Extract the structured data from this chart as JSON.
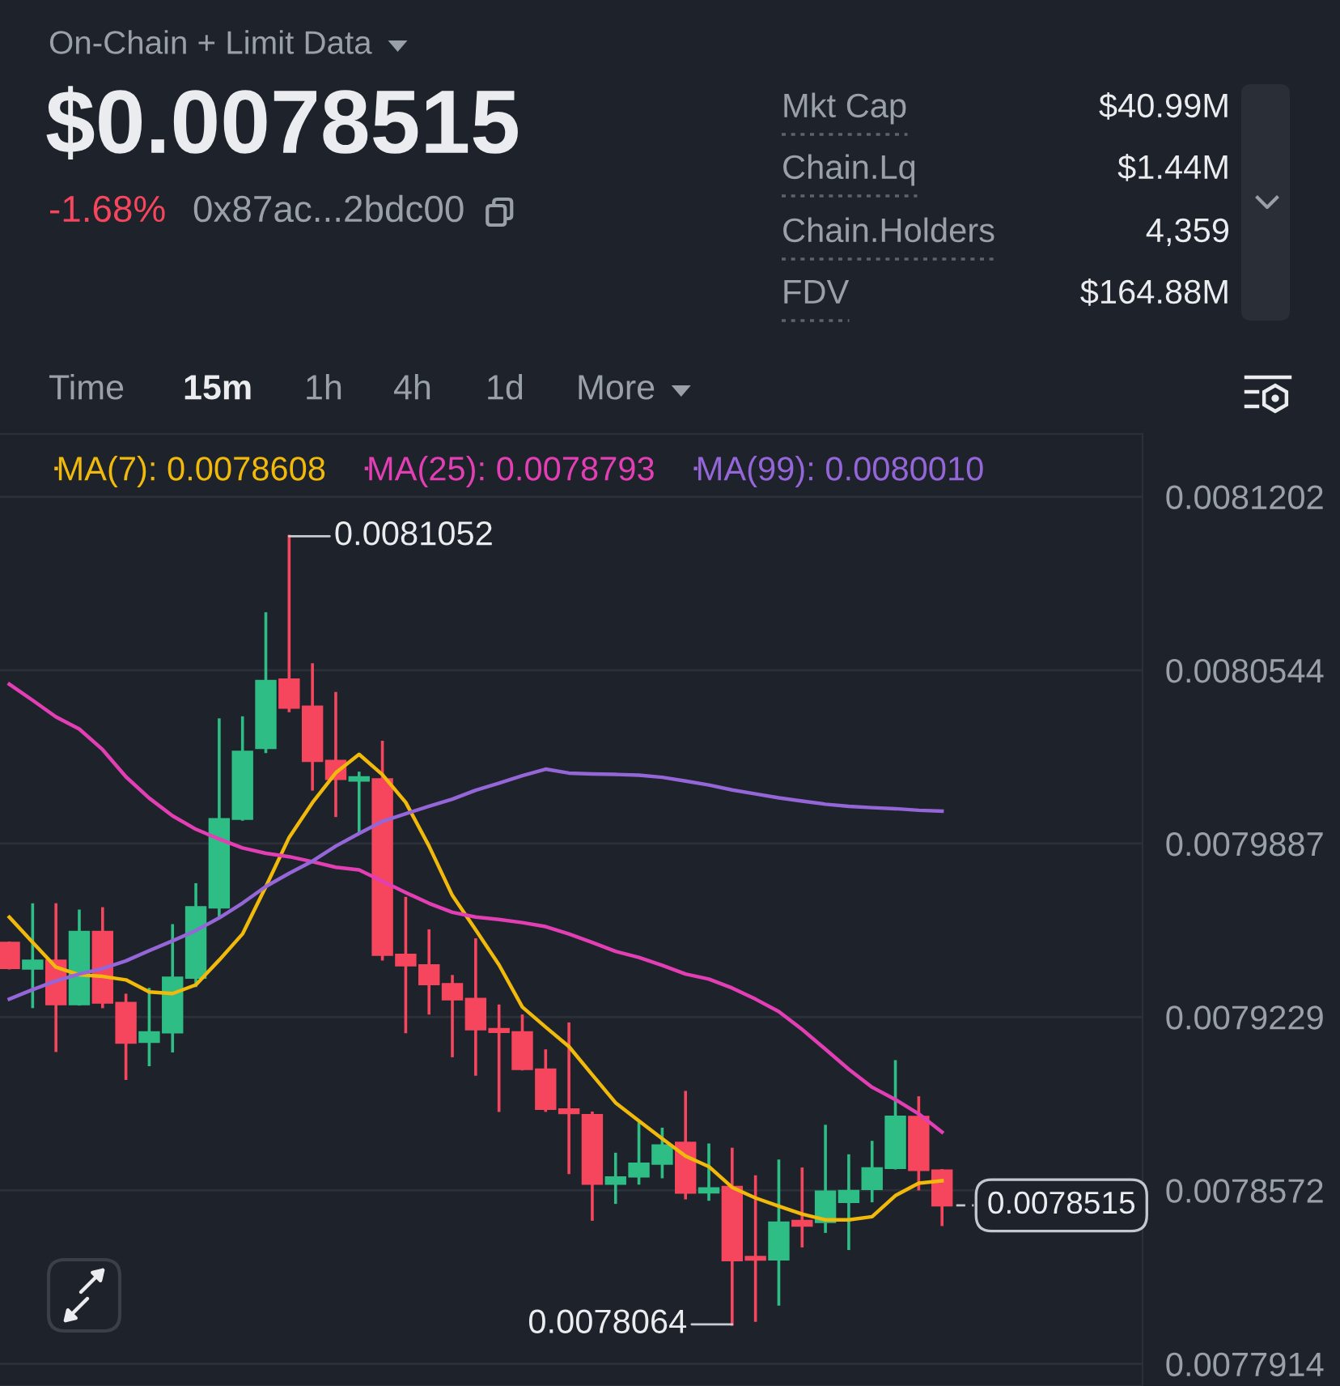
{
  "chart_data": {
    "type": "candlestick",
    "title": "On-Chain + Limit Data",
    "subtitle": "$0.0078515",
    "categories": [
      null,
      null,
      null,
      null,
      null,
      null,
      null,
      null,
      null,
      null,
      null,
      null,
      null,
      null,
      null,
      null,
      null,
      null,
      null,
      null,
      null,
      null,
      null,
      null,
      null,
      null,
      null,
      null,
      null,
      null,
      null,
      null,
      null,
      null,
      null,
      null,
      null,
      null,
      null,
      null,
      null
    ],
    "ohlc": [
      [
        0.007951,
        0.007951,
        0.0079415,
        0.0079415
      ],
      [
        0.0079413,
        0.0079655,
        0.0079268,
        0.0079443
      ],
      [
        0.0079443,
        0.0079655,
        0.0079102,
        0.0079278
      ],
      [
        0.0079278,
        0.0079631,
        0.0079278,
        0.0079552
      ],
      [
        0.0079552,
        0.007964,
        0.0079268,
        0.0079284
      ],
      [
        0.0079282,
        0.0079312,
        0.0078996,
        0.0079132
      ],
      [
        0.0079135,
        0.0079334,
        0.0079048,
        0.0079171
      ],
      [
        0.0079171,
        0.0079576,
        0.00791,
        0.0079378
      ],
      [
        0.0079378,
        0.0079731,
        0.0079348,
        0.0079645
      ],
      [
        0.0079645,
        0.0080356,
        0.0079616,
        0.0079979
      ],
      [
        0.0079981,
        0.0080364,
        0.0079979,
        0.0080235
      ],
      [
        0.0080249,
        0.0080758,
        0.0080235,
        0.0080503
      ],
      [
        0.0080509,
        0.0081052,
        0.008039,
        0.0080402
      ],
      [
        0.0080406,
        0.0080565,
        0.0080093,
        0.00802
      ],
      [
        0.00802,
        0.0080456,
        0.0079993,
        0.0080132
      ],
      [
        0.0080126,
        0.0080154,
        0.0079928,
        0.0080138
      ],
      [
        0.008013,
        0.0080271,
        0.0079449,
        0.0079465
      ],
      [
        0.0079465,
        0.0079679,
        0.0079173,
        0.0079425
      ],
      [
        0.0079425,
        0.0079556,
        0.0079244,
        0.0079354
      ],
      [
        0.0079354,
        0.0079383,
        0.0079082,
        0.0079296
      ],
      [
        0.0079298,
        0.0079522,
        0.0079012,
        0.0079183
      ],
      [
        0.0079183,
        0.0079271,
        0.0078875,
        0.0079173
      ],
      [
        0.0079171,
        0.0079233,
        0.0079032,
        0.0079032
      ],
      [
        0.007903,
        0.0079101,
        0.0078875,
        0.0078881
      ],
      [
        0.0078879,
        0.0079203,
        0.0078639,
        0.0078865
      ],
      [
        0.0078857,
        0.0078865,
        0.0078462,
        0.0078597
      ],
      [
        0.0078597,
        0.0078709,
        0.0078526,
        0.0078621
      ],
      [
        0.0078625,
        0.0078824,
        0.0078599,
        0.0078673
      ],
      [
        0.0078673,
        0.0078804,
        0.0078623,
        0.0078742
      ],
      [
        0.0078752,
        0.0078943,
        0.0078543,
        0.0078563
      ],
      [
        0.0078564,
        0.0078744,
        0.0078538,
        0.0078579
      ],
      [
        0.0078585,
        0.0078728,
        0.0078064,
        0.0078307
      ],
      [
        0.0078319,
        0.0078623,
        0.0078079,
        0.0078309
      ],
      [
        0.007831,
        0.0078683,
        0.007814,
        0.007845
      ],
      [
        0.0078456,
        0.0078653,
        0.0078361,
        0.0078438
      ],
      [
        0.0078452,
        0.0078815,
        0.0078416,
        0.0078567
      ],
      [
        0.0078528,
        0.0078703,
        0.0078351,
        0.0078569
      ],
      [
        0.0078577,
        0.0078754,
        0.0078532,
        0.0078655
      ],
      [
        0.0078657,
        0.007906,
        0.0078657,
        0.0078851
      ],
      [
        0.007885,
        0.0078923,
        0.0078577,
        0.0078649
      ],
      [
        0.0078647,
        0.0078647,
        0.0078442,
        0.0078515
      ]
    ],
    "colors": [
      "#f6465d",
      "#2ebd85",
      "#f6465d",
      "#2ebd85",
      "#f6465d",
      "#f6465d",
      "#2ebd85",
      "#2ebd85",
      "#2ebd85",
      "#2ebd85",
      "#2ebd85",
      "#2ebd85",
      "#f6465d",
      "#f6465d",
      "#f6465d",
      "#2ebd85",
      "#f6465d",
      "#f6465d",
      "#f6465d",
      "#f6465d",
      "#f6465d",
      "#f6465d",
      "#f6465d",
      "#f6465d",
      "#f6465d",
      "#f6465d",
      "#2ebd85",
      "#2ebd85",
      "#2ebd85",
      "#f6465d",
      "#2ebd85",
      "#f6465d",
      "#f6465d",
      "#2ebd85",
      "#f6465d",
      "#2ebd85",
      "#2ebd85",
      "#2ebd85",
      "#2ebd85",
      "#f6465d",
      "#f6465d"
    ],
    "series": [
      {
        "name": "MA(7): 0.0078608",
        "type": "line",
        "color": "#f0b90b",
        "values": [
          0.0079608,
          0.0079512,
          0.0079418,
          0.0079389,
          0.0079383,
          0.007937,
          0.0079324,
          0.0079318,
          0.0079351,
          0.0079445,
          0.0079544,
          0.0079723,
          0.007991,
          0.0080042,
          0.0080155,
          0.0080225,
          0.0080148,
          0.0080043,
          0.0079877,
          0.007969,
          0.007956,
          0.0079427,
          0.0079267,
          0.0079191,
          0.0079117,
          0.007901,
          0.0078904,
          0.0078835,
          0.0078768,
          0.0078702,
          0.0078662,
          0.0078583,
          0.0078543,
          0.0078512,
          0.0078482,
          0.007846,
          0.007846,
          0.0078472,
          0.0078552,
          0.0078599,
          0.0078608
        ]
      },
      {
        "name": "MA(25): 0.0078793",
        "type": "line",
        "color": "#e33fb4",
        "values": [
          0.0080491,
          0.008043,
          0.0080367,
          0.0080321,
          0.0080243,
          0.008014,
          0.0080059,
          0.0079992,
          0.0079941,
          0.0079904,
          0.007987,
          0.007985,
          0.0079837,
          0.0079818,
          0.0079797,
          0.0079787,
          0.0079744,
          0.0079701,
          0.007966,
          0.0079626,
          0.0079608,
          0.0079599,
          0.0079587,
          0.0079572,
          0.0079544,
          0.0079512,
          0.0079478,
          0.0079455,
          0.0079425,
          0.0079392,
          0.0079373,
          0.0079339,
          0.0079297,
          0.007925,
          0.0079182,
          0.0079107,
          0.0079031,
          0.0078963,
          0.0078916,
          0.0078862,
          0.0078793
        ]
      },
      {
        "name": "MA(99): 0.0080010",
        "type": "line",
        "color": "#9466d8",
        "values": [
          0.0079297,
          0.0079333,
          0.0079366,
          0.0079392,
          0.0079413,
          0.0079442,
          0.0079481,
          0.0079518,
          0.0079557,
          0.0079605,
          0.0079661,
          0.0079724,
          0.0079774,
          0.007982,
          0.0079877,
          0.0079925,
          0.0079971,
          0.008,
          0.0080028,
          0.0080055,
          0.0080089,
          0.0080116,
          0.0080144,
          0.0080169,
          0.0080154,
          0.0080151,
          0.0080149,
          0.0080146,
          0.0080138,
          0.0080124,
          0.0080109,
          0.008009,
          0.0080075,
          0.008006,
          0.0080048,
          0.0080036,
          0.0080028,
          0.0080023,
          0.0080019,
          0.0080013,
          0.008001
        ]
      }
    ],
    "ylim": [
      0.007783,
      0.008144
    ],
    "yticks": [
      0.0081202,
      0.0080544,
      0.0079887,
      0.0079229,
      0.0078572,
      0.0077914
    ],
    "grid": "y",
    "legend": "top left",
    "tick_labels": "y",
    "ref_lines": [
      {
        "axis": "y",
        "value": 0.0078515,
        "label": "0.0078515",
        "color": "#c3c8cf",
        "line_style": "dashed"
      }
    ],
    "annotations": [
      "-1.68%",
      "0x87ac...2bdc00",
      "Mkt Cap",
      "$40.99M",
      "Chain.Lq",
      "$1.44M",
      "Chain.Holders",
      "4,359",
      "FDV",
      "$164.88M",
      "Time",
      "15m",
      "1h",
      "4h",
      "1d",
      "More",
      "0.0081052",
      "0.0078064"
    ]
  }
}
